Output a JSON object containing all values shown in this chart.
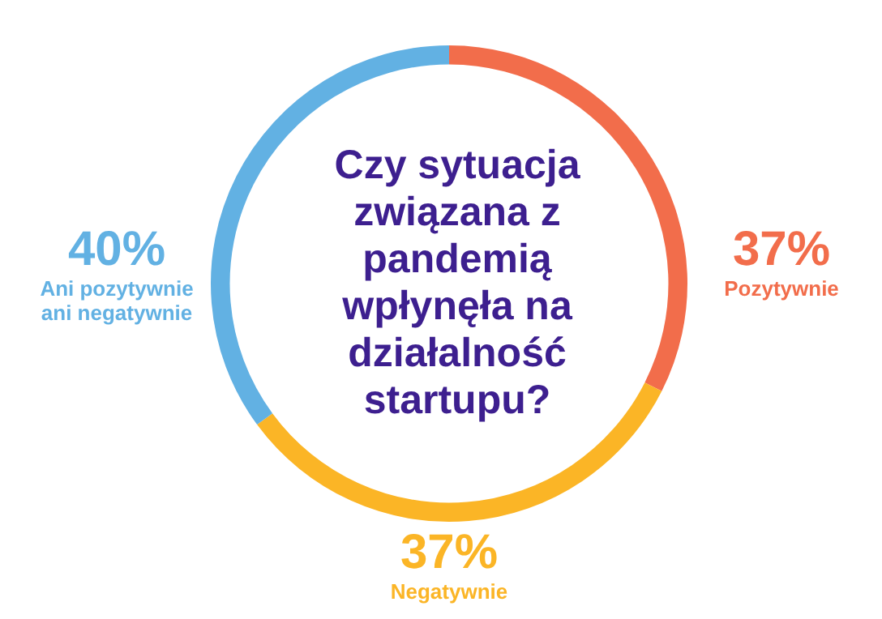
{
  "chart_data": {
    "type": "donut",
    "title": "Czy sytuacja związana z pandemią wpłynęła na działalność startupu?",
    "categories": [
      "Pozytywnie",
      "Negatywnie",
      "Ani pozytywnie ani negatywnie"
    ],
    "values": [
      37,
      37,
      40
    ],
    "colors": [
      "#f26d4b",
      "#fbb526",
      "#62b1e3"
    ],
    "value_labels": [
      "37%",
      "37%",
      "40%"
    ],
    "legend": false
  }
}
